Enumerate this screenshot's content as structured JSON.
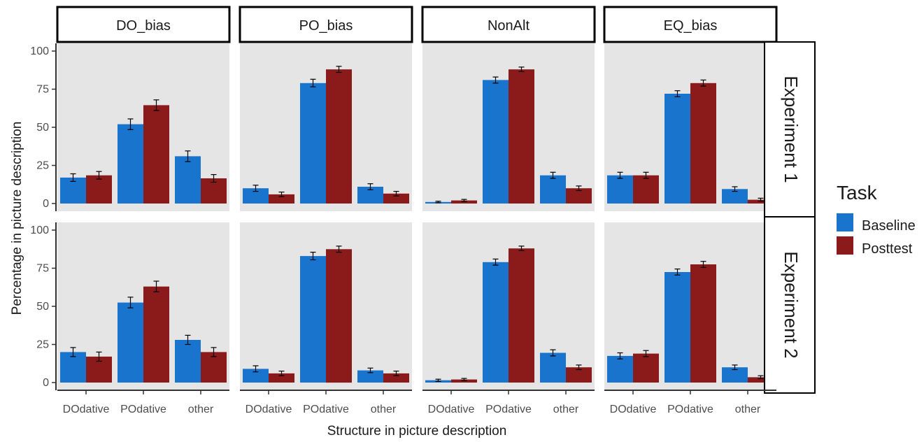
{
  "chart_data": {
    "type": "bar",
    "facet_columns": [
      "DO_bias",
      "PO_bias",
      "NonAlt",
      "EQ_bias"
    ],
    "facet_rows": [
      "Experiment 1",
      "Experiment 2"
    ],
    "categories": [
      "DOdative",
      "POdative",
      "other"
    ],
    "xlabel": "Structure in picture description",
    "ylabel": "Percentage in picture description",
    "ylim": [
      0,
      100
    ],
    "yticks": [
      0,
      25,
      50,
      75,
      100
    ],
    "legend": {
      "title": "Task",
      "placement": "right",
      "entries": [
        {
          "name": "Baseline",
          "color": "#1874CD"
        },
        {
          "name": "Posttest",
          "color": "#8B1A1A"
        }
      ]
    },
    "grid": false,
    "panels": [
      {
        "row": "Experiment 1",
        "column": "DO_bias",
        "series": [
          {
            "name": "Baseline",
            "values": [
              17,
              52,
              31
            ],
            "error": [
              2.5,
              3.5,
              3.5
            ]
          },
          {
            "name": "Posttest",
            "values": [
              18.5,
              64.5,
              16.5
            ],
            "error": [
              2.5,
              3.5,
              2.5
            ]
          }
        ]
      },
      {
        "row": "Experiment 1",
        "column": "PO_bias",
        "series": [
          {
            "name": "Baseline",
            "values": [
              10,
              79,
              11
            ],
            "error": [
              2,
              2.5,
              2
            ]
          },
          {
            "name": "Posttest",
            "values": [
              6,
              88,
              6.5
            ],
            "error": [
              1.5,
              2,
              1.5
            ]
          }
        ]
      },
      {
        "row": "Experiment 1",
        "column": "NonAlt",
        "series": [
          {
            "name": "Baseline",
            "values": [
              1,
              81,
              18.5
            ],
            "error": [
              0.5,
              2,
              2
            ]
          },
          {
            "name": "Posttest",
            "values": [
              2,
              88,
              10
            ],
            "error": [
              0.7,
              1.5,
              1.5
            ]
          }
        ]
      },
      {
        "row": "Experiment 1",
        "column": "EQ_bias",
        "series": [
          {
            "name": "Baseline",
            "values": [
              18.5,
              72,
              9.5
            ],
            "error": [
              2,
              2,
              1.5
            ]
          },
          {
            "name": "Posttest",
            "values": [
              18.5,
              79,
              2.5
            ],
            "error": [
              2,
              2,
              1
            ]
          }
        ]
      },
      {
        "row": "Experiment 2",
        "column": "DO_bias",
        "series": [
          {
            "name": "Baseline",
            "values": [
              20,
              52.5,
              28
            ],
            "error": [
              3,
              3.5,
              3
            ]
          },
          {
            "name": "Posttest",
            "values": [
              17,
              63,
              20
            ],
            "error": [
              3,
              3.5,
              3
            ]
          }
        ]
      },
      {
        "row": "Experiment 2",
        "column": "PO_bias",
        "series": [
          {
            "name": "Baseline",
            "values": [
              9,
              83,
              8
            ],
            "error": [
              2,
              2.5,
              1.5
            ]
          },
          {
            "name": "Posttest",
            "values": [
              6,
              87.5,
              6
            ],
            "error": [
              1.5,
              2,
              1.5
            ]
          }
        ]
      },
      {
        "row": "Experiment 2",
        "column": "NonAlt",
        "series": [
          {
            "name": "Baseline",
            "values": [
              1.5,
              79,
              19.5
            ],
            "error": [
              0.7,
              2,
              2
            ]
          },
          {
            "name": "Posttest",
            "values": [
              2,
              88,
              10
            ],
            "error": [
              0.7,
              1.5,
              1.5
            ]
          }
        ]
      },
      {
        "row": "Experiment 2",
        "column": "EQ_bias",
        "series": [
          {
            "name": "Baseline",
            "values": [
              17.5,
              72.5,
              10
            ],
            "error": [
              2,
              2,
              1.5
            ]
          },
          {
            "name": "Posttest",
            "values": [
              19,
              77.5,
              3.5
            ],
            "error": [
              2,
              2,
              1
            ]
          }
        ]
      }
    ]
  }
}
